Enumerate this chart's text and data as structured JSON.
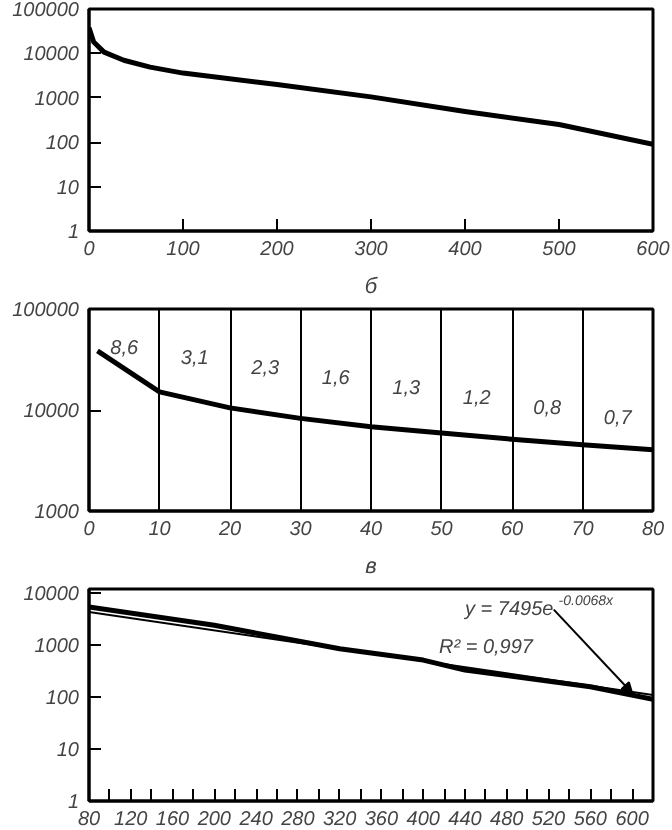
{
  "chart_data": [
    {
      "type": "line",
      "x": [
        0,
        5,
        16,
        37,
        65,
        100,
        200,
        300,
        400,
        500,
        600
      ],
      "series": [
        {
          "color": "#000000",
          "values": [
            38000,
            18000,
            10700,
            7000,
            4900,
            3600,
            2000,
            1050,
            490,
            250,
            90
          ]
        }
      ],
      "xlim": [
        0,
        600
      ],
      "xticks": [
        0,
        100,
        200,
        300,
        400,
        500,
        600
      ],
      "ylim": [
        1,
        100000
      ],
      "yticks": [
        1,
        10,
        100,
        1000,
        10000,
        100000
      ],
      "log": "y",
      "grid": false
    },
    {
      "type": "line",
      "title": "б",
      "x": [
        1.2,
        10,
        20,
        30,
        40,
        50,
        60,
        70,
        80
      ],
      "series": [
        {
          "color": "#000000",
          "values": [
            38500,
            15100,
            10500,
            8260,
            6830,
            5920,
            5130,
            4520,
            4050
          ]
        }
      ],
      "xlim": [
        0,
        80
      ],
      "xticks": [
        0,
        10,
        20,
        30,
        40,
        50,
        60,
        70,
        80
      ],
      "ylim": [
        1000,
        100000
      ],
      "yticks": [
        1000,
        10000,
        100000
      ],
      "log": "y",
      "grid": "x",
      "annotations": [
        "8,6",
        "3,1",
        "2,3",
        "1,6",
        "1,3",
        "1,2",
        "0,8",
        "0,7"
      ]
    },
    {
      "type": "line",
      "title": "в",
      "series": [
        {
          "color": "#000000",
          "x": [
            80,
            200,
            320,
            400,
            440,
            560,
            620
          ],
          "values": [
            5400,
            2400,
            850,
            515,
            330,
            158,
            91
          ]
        },
        {
          "type": "line",
          "color": "#000000",
          "x": [
            80,
            620
          ],
          "values": [
            4350,
            110
          ]
        }
      ],
      "xlim": [
        80,
        620
      ],
      "xticks": [
        80,
        {
          "value": 100,
          "label": null
        },
        120,
        {
          "value": 140,
          "label": null
        },
        160,
        {
          "value": 180,
          "label": null
        },
        200,
        {
          "value": 220,
          "label": null
        },
        240,
        {
          "value": 260,
          "label": null
        },
        280,
        {
          "value": 300,
          "label": null
        },
        320,
        {
          "value": 340,
          "label": null
        },
        360,
        {
          "value": 380,
          "label": null
        },
        400,
        {
          "value": 420,
          "label": null
        },
        440,
        {
          "value": 460,
          "label": null
        },
        480,
        {
          "value": 500,
          "label": null
        },
        520,
        {
          "value": 540,
          "label": null
        },
        560,
        {
          "value": 580,
          "label": null
        },
        600
      ],
      "ylim": [
        1,
        12000
      ],
      "yticks": [
        1,
        10,
        100,
        1000,
        10000
      ],
      "log": "y",
      "grid": false,
      "annotations": [
        {
          "text": "y = 7495e$^{-0.0068x}$",
          "x": 600,
          "y": 120
        },
        "R² = 0,997"
      ]
    }
  ]
}
